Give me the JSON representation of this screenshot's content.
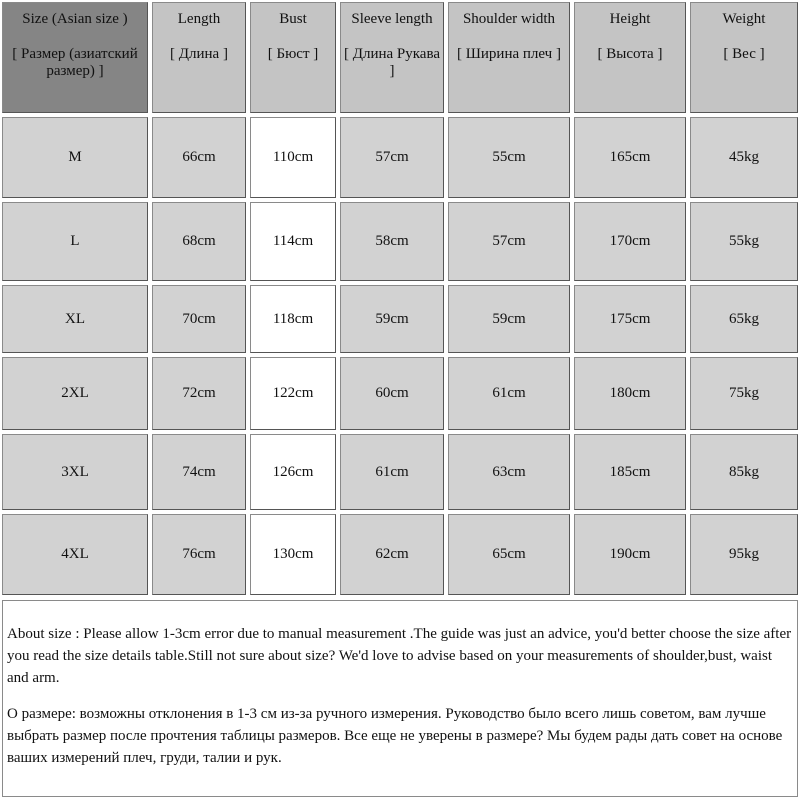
{
  "table": {
    "header": [
      {
        "en": "Size (Asian size )",
        "ru": "[ Размер (азиатский размер) ]"
      },
      {
        "en": "Length",
        "ru": "[ Длина ]"
      },
      {
        "en": "Bust",
        "ru": "[ Бюст ]"
      },
      {
        "en": "Sleeve length",
        "ru": "[ Длина Рукава ]"
      },
      {
        "en": "Shoulder width",
        "ru": "[ Ширина плеч ]"
      },
      {
        "en": "Height",
        "ru": "[ Высота ]"
      },
      {
        "en": "Weight",
        "ru": "[ Вес ]"
      }
    ],
    "rows": [
      [
        "M",
        "66cm",
        "110cm",
        "57cm",
        "55cm",
        "165cm",
        "45kg"
      ],
      [
        "L",
        "68cm",
        "114cm",
        "58cm",
        "57cm",
        "170cm",
        "55kg"
      ],
      [
        "XL",
        "70cm",
        "118cm",
        "59cm",
        "59cm",
        "175cm",
        "65kg"
      ],
      [
        "2XL",
        "72cm",
        "122cm",
        "60cm",
        "61cm",
        "180cm",
        "75kg"
      ],
      [
        "3XL",
        "74cm",
        "126cm",
        "61cm",
        "63cm",
        "185cm",
        "85kg"
      ],
      [
        "4XL",
        "76cm",
        "130cm",
        "62cm",
        "65cm",
        "190cm",
        "95kg"
      ]
    ]
  },
  "note": [
    "About size : Please allow 1-3cm error due to manual measurement .The guide was just an advice, you'd better choose the size after you read the size details table.Still not sure about size? We'd love to advise based on your measurements of shoulder,bust, waist and arm.",
    "О размере: возможны отклонения в 1-3 см из-за ручного измерения. Руководство было всего лишь советом, вам лучше выбрать размер после прочтения таблицы размеров. Все еще не уверены в размере? Мы будем рады дать совет на основе ваших измерений плеч, груди, талии и рук."
  ]
}
